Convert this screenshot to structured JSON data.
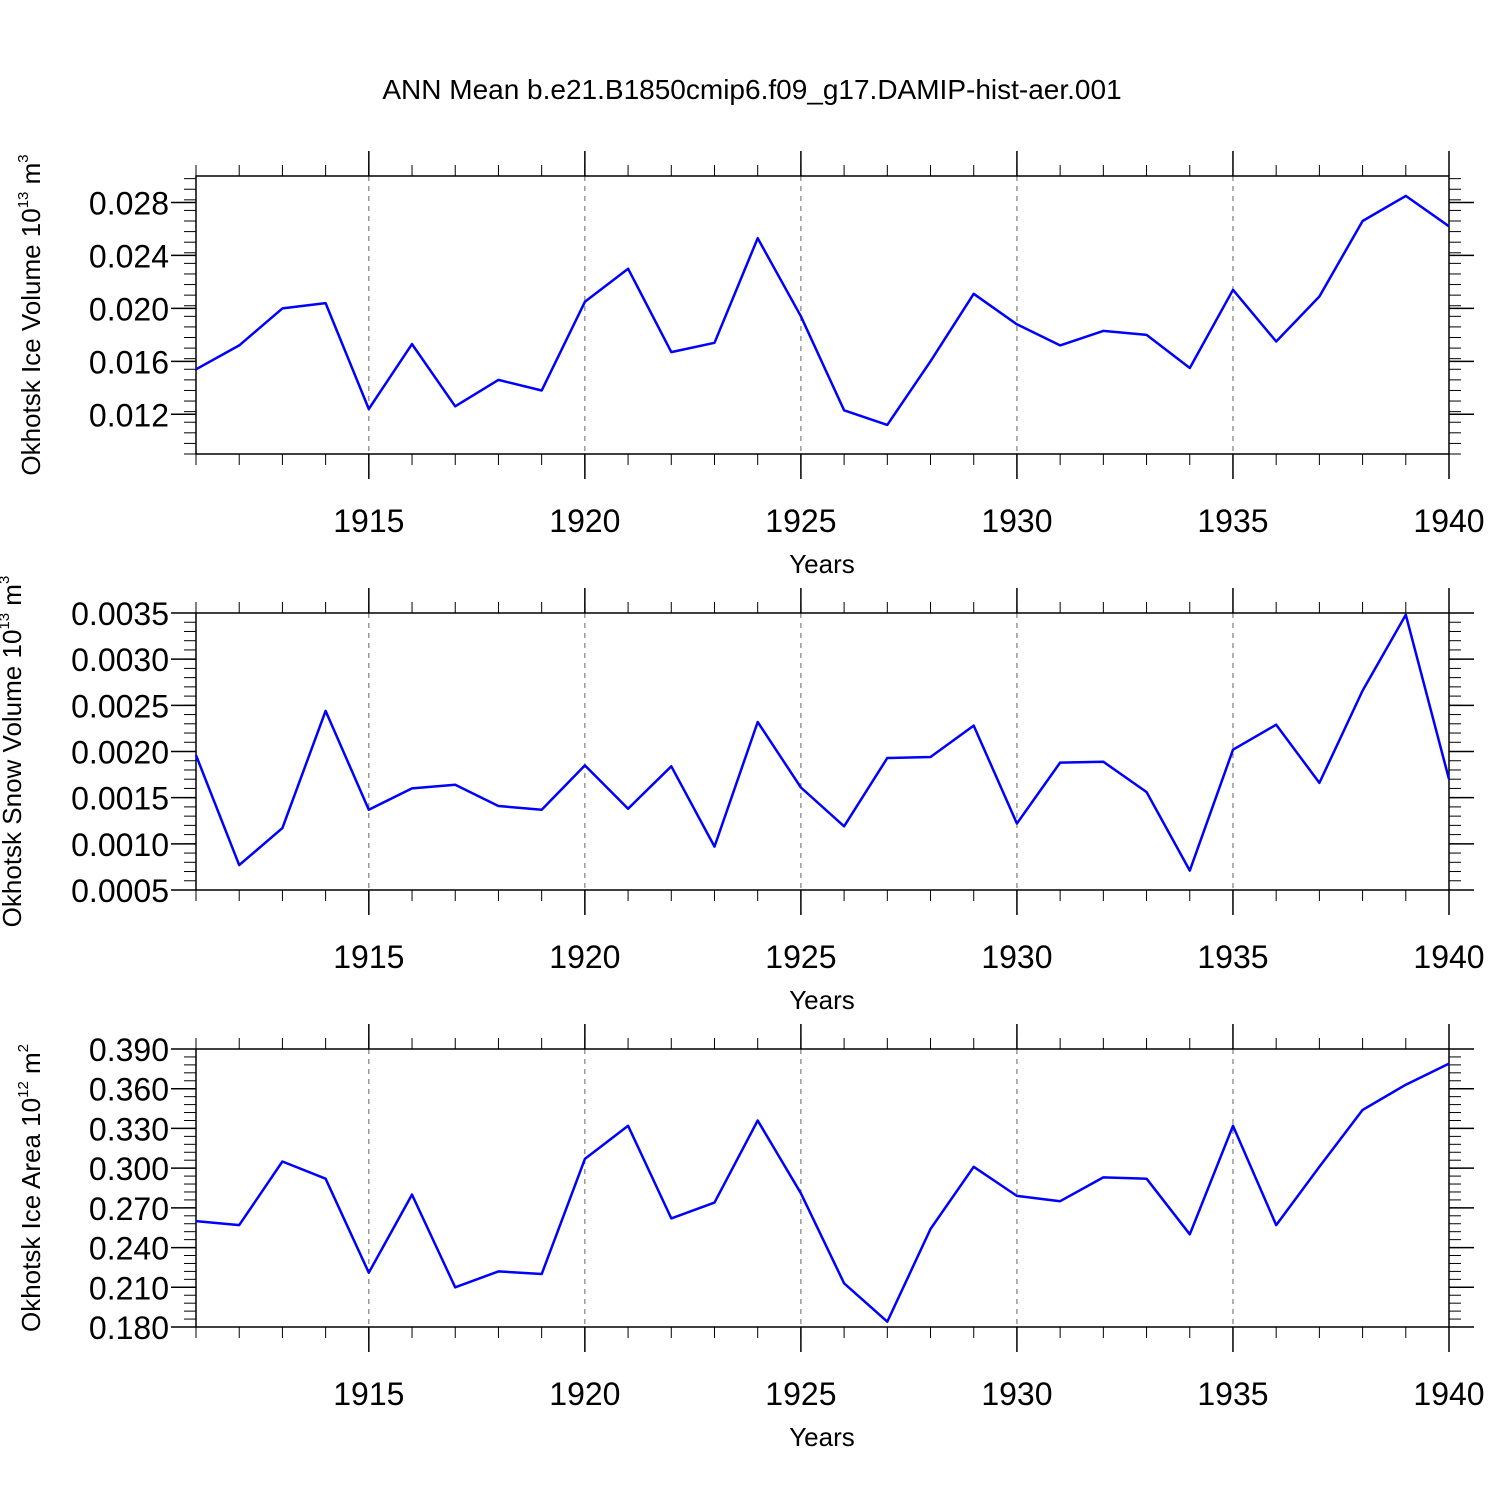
{
  "title": "ANN Mean b.e21.B1850cmip6.f09_g17.DAMIP-hist-aer.001",
  "chart_data": [
    {
      "type": "line",
      "xlabel": "Years",
      "ylabel": {
        "prefix": "Okhotsk Ice Volume 10",
        "exp": "13",
        "unit": "m",
        "unit_exp": "3"
      },
      "xlim": [
        1911,
        1940
      ],
      "ylim": [
        0.009,
        0.03
      ],
      "x_ticks": [
        1915,
        1920,
        1925,
        1930,
        1935,
        1940
      ],
      "x_tick_labels": [
        "1915",
        "1920",
        "1925",
        "1930",
        "1935",
        "1940"
      ],
      "y_ticks": [
        0.012,
        0.016,
        0.02,
        0.024,
        0.028
      ],
      "y_tick_labels": [
        "0.012",
        "0.016",
        "0.020",
        "0.024",
        "0.028"
      ],
      "y_minor_step": 0.0008,
      "grid": "vertical dashed at major x ticks",
      "color": "#0000ff",
      "series": [
        {
          "x": [
            1911,
            1912,
            1913,
            1914,
            1915,
            1916,
            1917,
            1918,
            1919,
            1920,
            1921,
            1922,
            1923,
            1924,
            1925,
            1926,
            1927,
            1928,
            1929,
            1930,
            1931,
            1932,
            1933,
            1934,
            1935,
            1936,
            1937,
            1938,
            1939,
            1940
          ],
          "values": [
            0.0154,
            0.0172,
            0.02,
            0.0204,
            0.0124,
            0.0173,
            0.0126,
            0.0146,
            0.0138,
            0.0205,
            0.023,
            0.0167,
            0.0174,
            0.0253,
            0.0194,
            0.0123,
            0.0112,
            0.016,
            0.0211,
            0.0188,
            0.0172,
            0.0183,
            0.018,
            0.0155,
            0.0214,
            0.0175,
            0.0209,
            0.0266,
            0.0285,
            0.0262
          ]
        }
      ]
    },
    {
      "type": "line",
      "xlabel": "Years",
      "ylabel": {
        "prefix": "Okhotsk Snow Volume 10",
        "exp": "13",
        "unit": "m",
        "unit_exp": "3"
      },
      "xlim": [
        1911,
        1940
      ],
      "ylim": [
        0.0005,
        0.0035
      ],
      "x_ticks": [
        1915,
        1920,
        1925,
        1930,
        1935,
        1940
      ],
      "x_tick_labels": [
        "1915",
        "1920",
        "1925",
        "1930",
        "1935",
        "1940"
      ],
      "y_ticks": [
        0.0005,
        0.001,
        0.0015,
        0.002,
        0.0025,
        0.003,
        0.0035
      ],
      "y_tick_labels": [
        "0.0005",
        "0.0010",
        "0.0015",
        "0.0020",
        "0.0025",
        "0.0030",
        "0.0035"
      ],
      "y_minor_step": 0.0001,
      "grid": "vertical dashed at major x ticks",
      "color": "#0000ff",
      "series": [
        {
          "x": [
            1911,
            1912,
            1913,
            1914,
            1915,
            1916,
            1917,
            1918,
            1919,
            1920,
            1921,
            1922,
            1923,
            1924,
            1925,
            1926,
            1927,
            1928,
            1929,
            1930,
            1931,
            1932,
            1933,
            1934,
            1935,
            1936,
            1937,
            1938,
            1939,
            1940
          ],
          "values": [
            0.00196,
            0.00077,
            0.00117,
            0.00244,
            0.00137,
            0.0016,
            0.00164,
            0.00141,
            0.00137,
            0.00185,
            0.00138,
            0.00184,
            0.00097,
            0.00232,
            0.00161,
            0.00119,
            0.00193,
            0.00194,
            0.00228,
            0.00122,
            0.00188,
            0.00189,
            0.00156,
            0.00071,
            0.00202,
            0.00229,
            0.00166,
            0.00266,
            0.00348,
            0.0017
          ]
        }
      ]
    },
    {
      "type": "line",
      "xlabel": "Years",
      "ylabel": {
        "prefix": "Okhotsk Ice Area 10",
        "exp": "12",
        "unit": "m",
        "unit_exp": "2"
      },
      "xlim": [
        1911,
        1940
      ],
      "ylim": [
        0.18,
        0.39
      ],
      "x_ticks": [
        1915,
        1920,
        1925,
        1930,
        1935,
        1940
      ],
      "x_tick_labels": [
        "1915",
        "1920",
        "1925",
        "1930",
        "1935",
        "1940"
      ],
      "y_ticks": [
        0.18,
        0.21,
        0.24,
        0.27,
        0.3,
        0.33,
        0.36,
        0.39
      ],
      "y_tick_labels": [
        "0.180",
        "0.210",
        "0.240",
        "0.270",
        "0.300",
        "0.330",
        "0.360",
        "0.390"
      ],
      "y_minor_step": 0.006,
      "grid": "vertical dashed at major x ticks",
      "color": "#0000ff",
      "series": [
        {
          "x": [
            1911,
            1912,
            1913,
            1914,
            1915,
            1916,
            1917,
            1918,
            1919,
            1920,
            1921,
            1922,
            1923,
            1924,
            1925,
            1926,
            1927,
            1928,
            1929,
            1930,
            1931,
            1932,
            1933,
            1934,
            1935,
            1936,
            1937,
            1938,
            1939,
            1940
          ],
          "values": [
            0.26,
            0.257,
            0.305,
            0.292,
            0.221,
            0.28,
            0.21,
            0.222,
            0.22,
            0.307,
            0.332,
            0.262,
            0.274,
            0.336,
            0.281,
            0.213,
            0.184,
            0.254,
            0.301,
            0.279,
            0.275,
            0.293,
            0.292,
            0.25,
            0.332,
            0.257,
            0.301,
            0.344,
            0.363,
            0.379
          ]
        }
      ]
    }
  ]
}
